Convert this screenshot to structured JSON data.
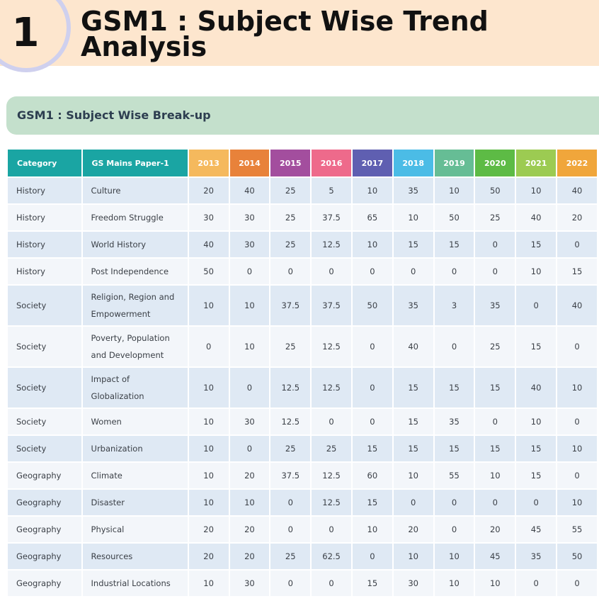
{
  "hero": {
    "number": "1",
    "title": "GSM1 : Subject Wise Trend Analysis"
  },
  "section": {
    "title": "GSM1 : Subject Wise Break-up"
  },
  "table": {
    "headers": {
      "category": "Category",
      "paper": "GS Mains Paper-1"
    },
    "years": [
      "2013",
      "2014",
      "2015",
      "2016",
      "2017",
      "2018",
      "2019",
      "2020",
      "2021",
      "2022"
    ],
    "year_colors": [
      "#f5b95d",
      "#e8823a",
      "#a34e9e",
      "#ee6a8b",
      "#5f5fb1",
      "#4bbce6",
      "#66bd95",
      "#5dbb45",
      "#9ccb52",
      "#f0a63b"
    ],
    "rows": [
      {
        "category": "History",
        "topic": "Culture",
        "values": [
          "20",
          "40",
          "25",
          "5",
          "10",
          "35",
          "10",
          "50",
          "10",
          "40"
        ]
      },
      {
        "category": "History",
        "topic": "Freedom Struggle",
        "values": [
          "30",
          "30",
          "25",
          "37.5",
          "65",
          "10",
          "50",
          "25",
          "40",
          "20"
        ]
      },
      {
        "category": "History",
        "topic": "World History",
        "values": [
          "40",
          "30",
          "25",
          "12.5",
          "10",
          "15",
          "15",
          "0",
          "15",
          "0"
        ]
      },
      {
        "category": "History",
        "topic": "Post Independence",
        "values": [
          "50",
          "0",
          "0",
          "0",
          "0",
          "0",
          "0",
          "0",
          "10",
          "15"
        ]
      },
      {
        "category": "Society",
        "topic": "Religion, Region and Empowerment",
        "values": [
          "10",
          "10",
          "37.5",
          "37.5",
          "50",
          "35",
          "3",
          "35",
          "0",
          "40"
        ]
      },
      {
        "category": "Society",
        "topic": "Poverty, Population and Development",
        "values": [
          "0",
          "10",
          "25",
          "12.5",
          "0",
          "40",
          "0",
          "25",
          "15",
          "0"
        ]
      },
      {
        "category": "Society",
        "topic": "Impact of Globalization",
        "values": [
          "10",
          "0",
          "12.5",
          "12.5",
          "0",
          "15",
          "15",
          "15",
          "40",
          "10"
        ]
      },
      {
        "category": "Society",
        "topic": "Women",
        "values": [
          "10",
          "30",
          "12.5",
          "0",
          "0",
          "15",
          "35",
          "0",
          "10",
          "0"
        ]
      },
      {
        "category": "Society",
        "topic": "Urbanization",
        "values": [
          "10",
          "0",
          "25",
          "25",
          "15",
          "15",
          "15",
          "15",
          "15",
          "10"
        ]
      },
      {
        "category": "Geography",
        "topic": "Climate",
        "values": [
          "10",
          "20",
          "37.5",
          "12.5",
          "60",
          "10",
          "55",
          "10",
          "15",
          "0"
        ]
      },
      {
        "category": "Geography",
        "topic": "Disaster",
        "values": [
          "10",
          "10",
          "0",
          "12.5",
          "15",
          "0",
          "0",
          "0",
          "0",
          "10"
        ]
      },
      {
        "category": "Geography",
        "topic": "Physical",
        "values": [
          "20",
          "20",
          "0",
          "0",
          "10",
          "20",
          "0",
          "20",
          "45",
          "55"
        ]
      },
      {
        "category": "Geography",
        "topic": "Resources",
        "values": [
          "20",
          "20",
          "25",
          "62.5",
          "0",
          "10",
          "10",
          "45",
          "35",
          "50"
        ]
      },
      {
        "category": "Geography",
        "topic": "Industrial Locations",
        "values": [
          "10",
          "30",
          "0",
          "0",
          "15",
          "30",
          "10",
          "10",
          "0",
          "0"
        ]
      }
    ]
  }
}
